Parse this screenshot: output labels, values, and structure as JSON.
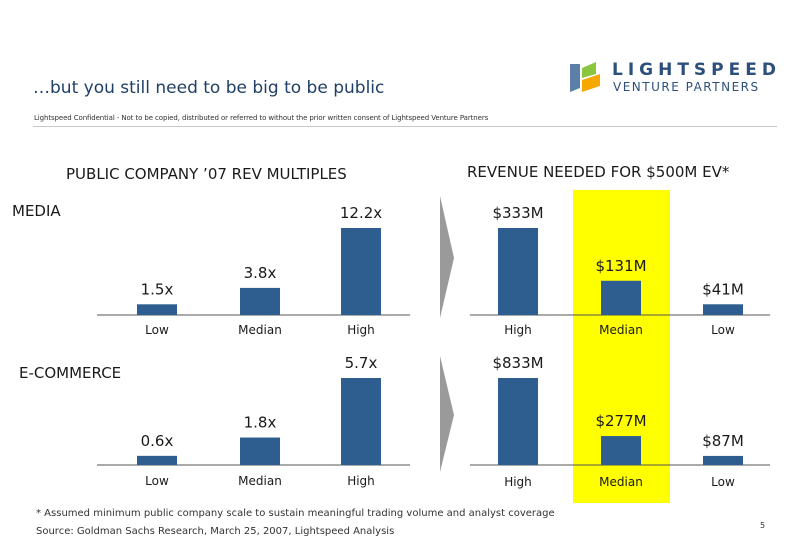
{
  "title": "…but you still need to be big to be public",
  "confidential": "Lightspeed Confidential - Not to be copied, distributed or referred to without the prior written consent of Lightspeed Venture Partners",
  "logo": {
    "top": "LIGHTSPEED",
    "bottom": "VENTURE PARTNERS",
    "colors": [
      "#2d4f7c",
      "#8cc63f",
      "#f7a800",
      "#5b7fa6"
    ]
  },
  "headers": {
    "left": "PUBLIC COMPANY ’07 REV MULTIPLES",
    "right": "REVENUE NEEDED FOR $500M EV*"
  },
  "segments": {
    "media": "MEDIA",
    "ecommerce": "E-COMMERCE"
  },
  "colors": {
    "bar": "#2e5d8f",
    "highlight": "#ffff00",
    "axis": "#555555",
    "arrow": "#9a9a9a"
  },
  "chart_data": [
    {
      "type": "bar",
      "panel": "media-multiples",
      "categories": [
        "Low",
        "Median",
        "High"
      ],
      "values": [
        1.5,
        3.8,
        12.2
      ],
      "labels": [
        "1.5x",
        "3.8x",
        "12.2x"
      ],
      "ylim": [
        0,
        12.2
      ]
    },
    {
      "type": "bar",
      "panel": "media-revenue",
      "categories": [
        "High",
        "Median",
        "Low"
      ],
      "values": [
        333,
        131,
        41
      ],
      "labels": [
        "$333M",
        "$131M",
        "$41M"
      ],
      "ylim": [
        0,
        333
      ]
    },
    {
      "type": "bar",
      "panel": "ecommerce-multiples",
      "categories": [
        "Low",
        "Median",
        "High"
      ],
      "values": [
        0.6,
        1.8,
        5.7
      ],
      "labels": [
        "0.6x",
        "1.8x",
        "5.7x"
      ],
      "ylim": [
        0,
        5.7
      ]
    },
    {
      "type": "bar",
      "panel": "ecommerce-revenue",
      "categories": [
        "High",
        "Median",
        "Low"
      ],
      "values": [
        833,
        277,
        87
      ],
      "labels": [
        "$833M",
        "$277M",
        "$87M"
      ],
      "ylim": [
        0,
        833
      ]
    }
  ],
  "footnote": "* Assumed minimum public company scale to sustain meaningful trading volume and analyst coverage",
  "source": "Source: Goldman Sachs Research, March 25, 2007, Lightspeed Analysis",
  "page_number": "5"
}
